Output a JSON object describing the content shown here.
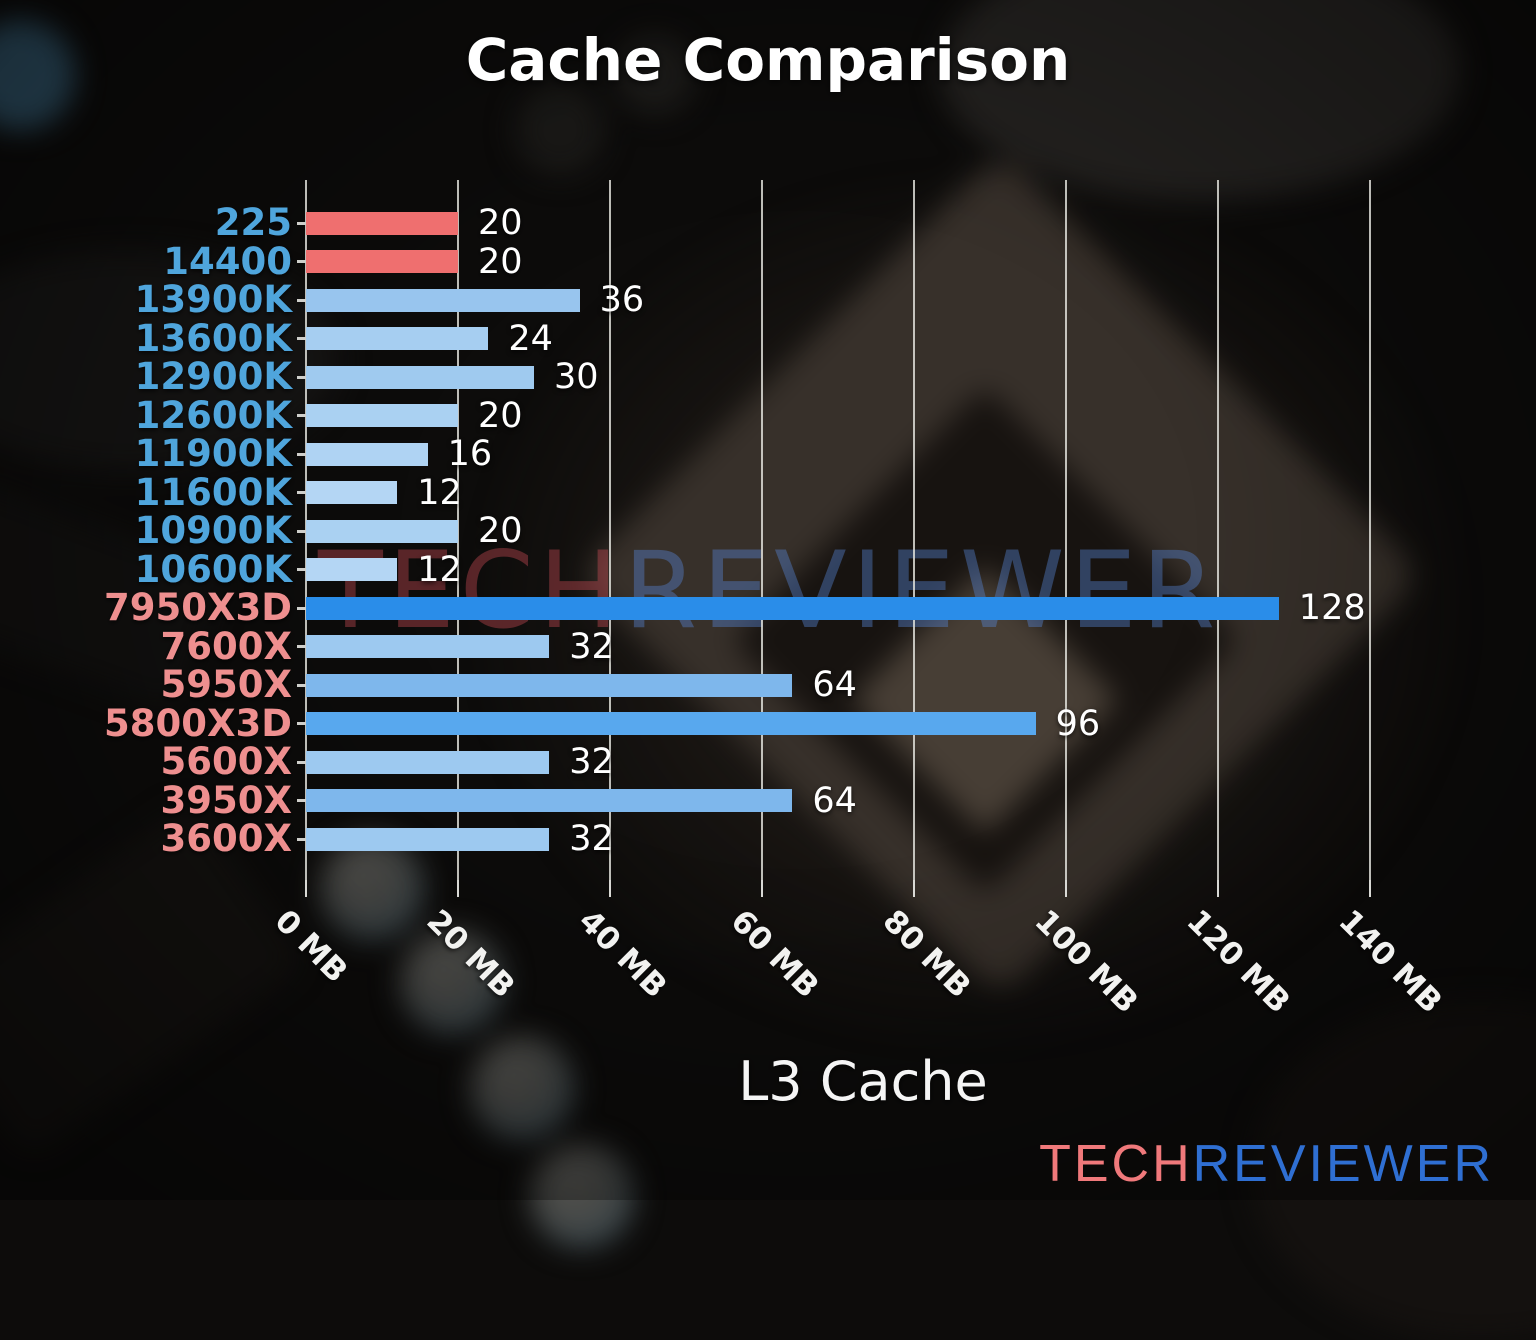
{
  "title": "Cache Comparison",
  "watermark": {
    "part1": "TECH",
    "part2": "REVIEWER",
    "color1": "rgba(214,80,90,0.38)",
    "color2": "rgba(86,132,210,0.42)"
  },
  "logo": {
    "part1": "TECH",
    "part2": "REVIEWER",
    "color1": "#F0797B",
    "color2": "#2F6FD2"
  },
  "colors": {
    "title_text": "#FFFFFF",
    "value_text": "#FFFFFF",
    "tick_text": "#F2F2F0",
    "gridline": "rgba(228,228,222,0.82)",
    "intel_label": "#4FA5DC",
    "amd_label": "#EE8F8F",
    "highlight_bar": "#EF6F6F"
  },
  "chart_data": {
    "type": "bar",
    "orientation": "horizontal",
    "title": "Cache Comparison",
    "xlabel": "L3 Cache",
    "ylabel": "",
    "xlim": [
      0,
      146
    ],
    "grid": true,
    "x_ticks": [
      {
        "label": "0 MB",
        "value": 0
      },
      {
        "label": "20 MB",
        "value": 20
      },
      {
        "label": "40 MB",
        "value": 40
      },
      {
        "label": "60 MB",
        "value": 60
      },
      {
        "label": "80 MB",
        "value": 80
      },
      {
        "label": "100 MB",
        "value": 100
      },
      {
        "label": "120 MB",
        "value": 120
      },
      {
        "label": "140 MB",
        "value": 140
      }
    ],
    "categories": [
      "225",
      "14400",
      "13900K",
      "13600K",
      "12900K",
      "12600K",
      "11900K",
      "11600K",
      "10900K",
      "10600K",
      "7950X3D",
      "7600X",
      "5950X",
      "5800X3D",
      "5600X",
      "3950X",
      "3600X"
    ],
    "values": [
      20,
      20,
      36,
      24,
      30,
      20,
      16,
      12,
      20,
      12,
      128,
      32,
      64,
      96,
      32,
      64,
      32
    ],
    "bar_colors": [
      "#EF6F6F",
      "#EF6F6F",
      "#98C5EE",
      "#A6CEF1",
      "#9FCAEF",
      "#AAD1F2",
      "#AFD3F3",
      "#B4D6F4",
      "#AAD1F2",
      "#B4D6F4",
      "#2A8DE9",
      "#9DC9F0",
      "#7EB7EC",
      "#58A8EE",
      "#9DC9F0",
      "#7EB7EC",
      "#9DC9F0"
    ],
    "label_colors": [
      "#4FA5DC",
      "#4FA5DC",
      "#4FA5DC",
      "#4FA5DC",
      "#4FA5DC",
      "#4FA5DC",
      "#4FA5DC",
      "#4FA5DC",
      "#4FA5DC",
      "#4FA5DC",
      "#EE8F8F",
      "#EE8F8F",
      "#EE8F8F",
      "#EE8F8F",
      "#EE8F8F",
      "#EE8F8F",
      "#EE8F8F"
    ]
  }
}
